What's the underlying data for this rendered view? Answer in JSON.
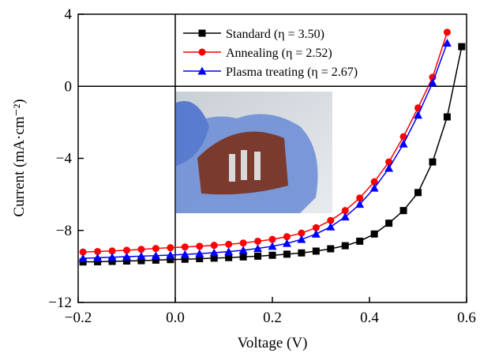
{
  "chart_data": {
    "type": "line",
    "xlabel": "Voltage (V)",
    "ylabel": "Current (mA·cm⁻²)",
    "xlim": [
      -0.2,
      0.6
    ],
    "ylim": [
      -12,
      4
    ],
    "xticks": [
      {
        "value": -0.2,
        "label": "−0.2"
      },
      {
        "value": 0,
        "label": "0.0"
      },
      0.2,
      0.4,
      0.6
    ],
    "yticks": [
      {
        "value": 4,
        "label": "4"
      },
      {
        "value": 0,
        "label": "0"
      },
      {
        "value": -4,
        "label": "−4"
      },
      {
        "value": -8,
        "label": "−8"
      },
      {
        "value": -12,
        "label": "−12"
      }
    ],
    "legend": "upper center",
    "x": [
      -0.19,
      -0.16,
      -0.13,
      -0.1,
      -0.07,
      -0.04,
      -0.01,
      0.02,
      0.05,
      0.08,
      0.11,
      0.14,
      0.17,
      0.2,
      0.23,
      0.26,
      0.29,
      0.32,
      0.35,
      0.38,
      0.41,
      0.44,
      0.47,
      0.5,
      0.53,
      0.56,
      0.59
    ],
    "series": [
      {
        "name": "Standard (η = 3.50)",
        "color": "#000000",
        "marker": "square",
        "values": [
          -9.75,
          -9.74,
          -9.72,
          -9.7,
          -9.68,
          -9.65,
          -9.62,
          -9.6,
          -9.57,
          -9.54,
          -9.51,
          -9.47,
          -9.43,
          -9.38,
          -9.32,
          -9.25,
          -9.15,
          -9.02,
          -8.85,
          -8.6,
          -8.2,
          -7.6,
          -6.9,
          -5.9,
          -4.2,
          -1.7,
          2.2
        ]
      },
      {
        "name": "Annealing (η = 2.52)",
        "color": "#ff0000",
        "marker": "circle",
        "values": [
          -9.2,
          -9.17,
          -9.14,
          -9.1,
          -9.05,
          -9.0,
          -8.96,
          -8.92,
          -8.88,
          -8.83,
          -8.77,
          -8.7,
          -8.6,
          -8.5,
          -8.35,
          -8.15,
          -7.85,
          -7.45,
          -6.9,
          -6.2,
          -5.3,
          -4.2,
          -2.8,
          -1.2,
          0.5,
          3.0,
          null
        ]
      },
      {
        "name": "Plasma treating (η = 2.67)",
        "color": "#0000ff",
        "marker": "triangle",
        "values": [
          -9.55,
          -9.52,
          -9.49,
          -9.46,
          -9.43,
          -9.4,
          -9.37,
          -9.33,
          -9.29,
          -9.24,
          -9.18,
          -9.1,
          -9.0,
          -8.88,
          -8.72,
          -8.5,
          -8.2,
          -7.8,
          -7.25,
          -6.55,
          -5.65,
          -4.55,
          -3.2,
          -1.6,
          0.2,
          2.4,
          null
        ]
      }
    ]
  }
}
